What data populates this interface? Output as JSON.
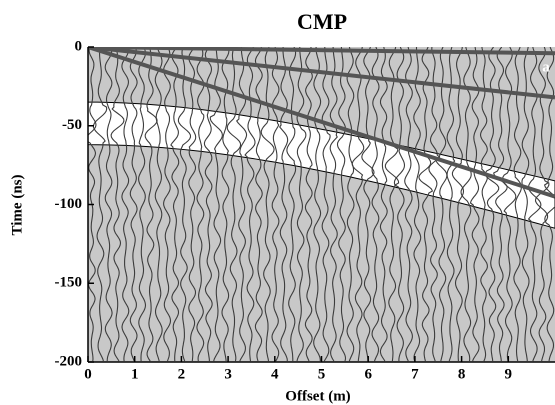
{
  "chart_data": {
    "type": "wiggle",
    "title": "CMP",
    "annotation": "a",
    "xlabel": "Offset (m)",
    "ylabel": "Time (ns)",
    "xlim": [
      0,
      10
    ],
    "ylim": [
      -200,
      0
    ],
    "xticks": [
      0,
      1,
      2,
      3,
      4,
      5,
      6,
      7,
      8,
      9
    ],
    "yticks": [
      0,
      -50,
      -100,
      -150,
      -200
    ],
    "background": "#c8c8c8",
    "trace_color": "#3c3c3c"
  }
}
